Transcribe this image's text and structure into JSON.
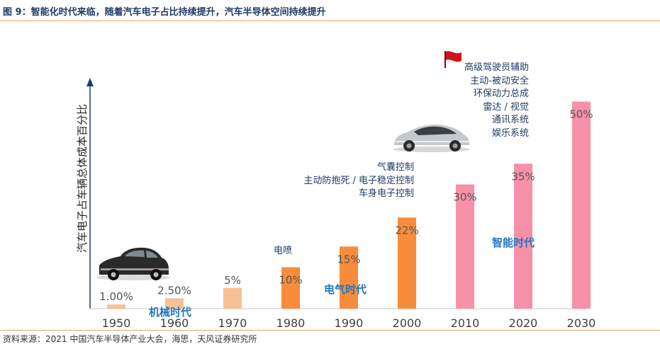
{
  "figure": {
    "title": "图 9：智能化时代来临，随着汽车电子占比持续提升，汽车半导体空间持续提升",
    "source": "资料来源：2021 中国汽车半导体产业大会，海思，天风证券研究所"
  },
  "chart_data": {
    "type": "bar",
    "title": "",
    "ylabel": "汽车电子占车辆总体成本百分比",
    "xlabel": "",
    "ylim": [
      0,
      60
    ],
    "categories": [
      "1950",
      "1960",
      "1970",
      "1980",
      "1990",
      "2000",
      "2010",
      "2020",
      "2030"
    ],
    "values": [
      1,
      2.5,
      5,
      10,
      15,
      22,
      30,
      35,
      50
    ],
    "value_labels": [
      "1.00%",
      "2.50%",
      "5%",
      "10%",
      "15%",
      "22%",
      "30%",
      "35%",
      "50%"
    ],
    "colors": [
      "#f6c193",
      "#f6c193",
      "#f6c193",
      "#f78c3c",
      "#f78c3c",
      "#f78c3c",
      "#f791a8",
      "#f791a8",
      "#f791a8"
    ],
    "eras": [
      {
        "label": "机械时代",
        "color": "#1f77c4"
      },
      {
        "label": "电气时代",
        "color": "#1f77c4"
      },
      {
        "label": "智能时代",
        "color": "#1f77c4"
      }
    ],
    "annotations": {
      "e1980": [
        "电喷"
      ],
      "e2000": [
        "气囊控制",
        "主动防抱死 / 电子稳定控制",
        "车身电子控制"
      ],
      "e2030": [
        "高级驾驶员辅助",
        "主动-被动安全",
        "环保动力总成",
        "雷达 / 视觉",
        "通讯系统",
        "娱乐系统"
      ]
    },
    "annotation_color": "#1f3b66",
    "axis_color": "#1f3b66"
  }
}
